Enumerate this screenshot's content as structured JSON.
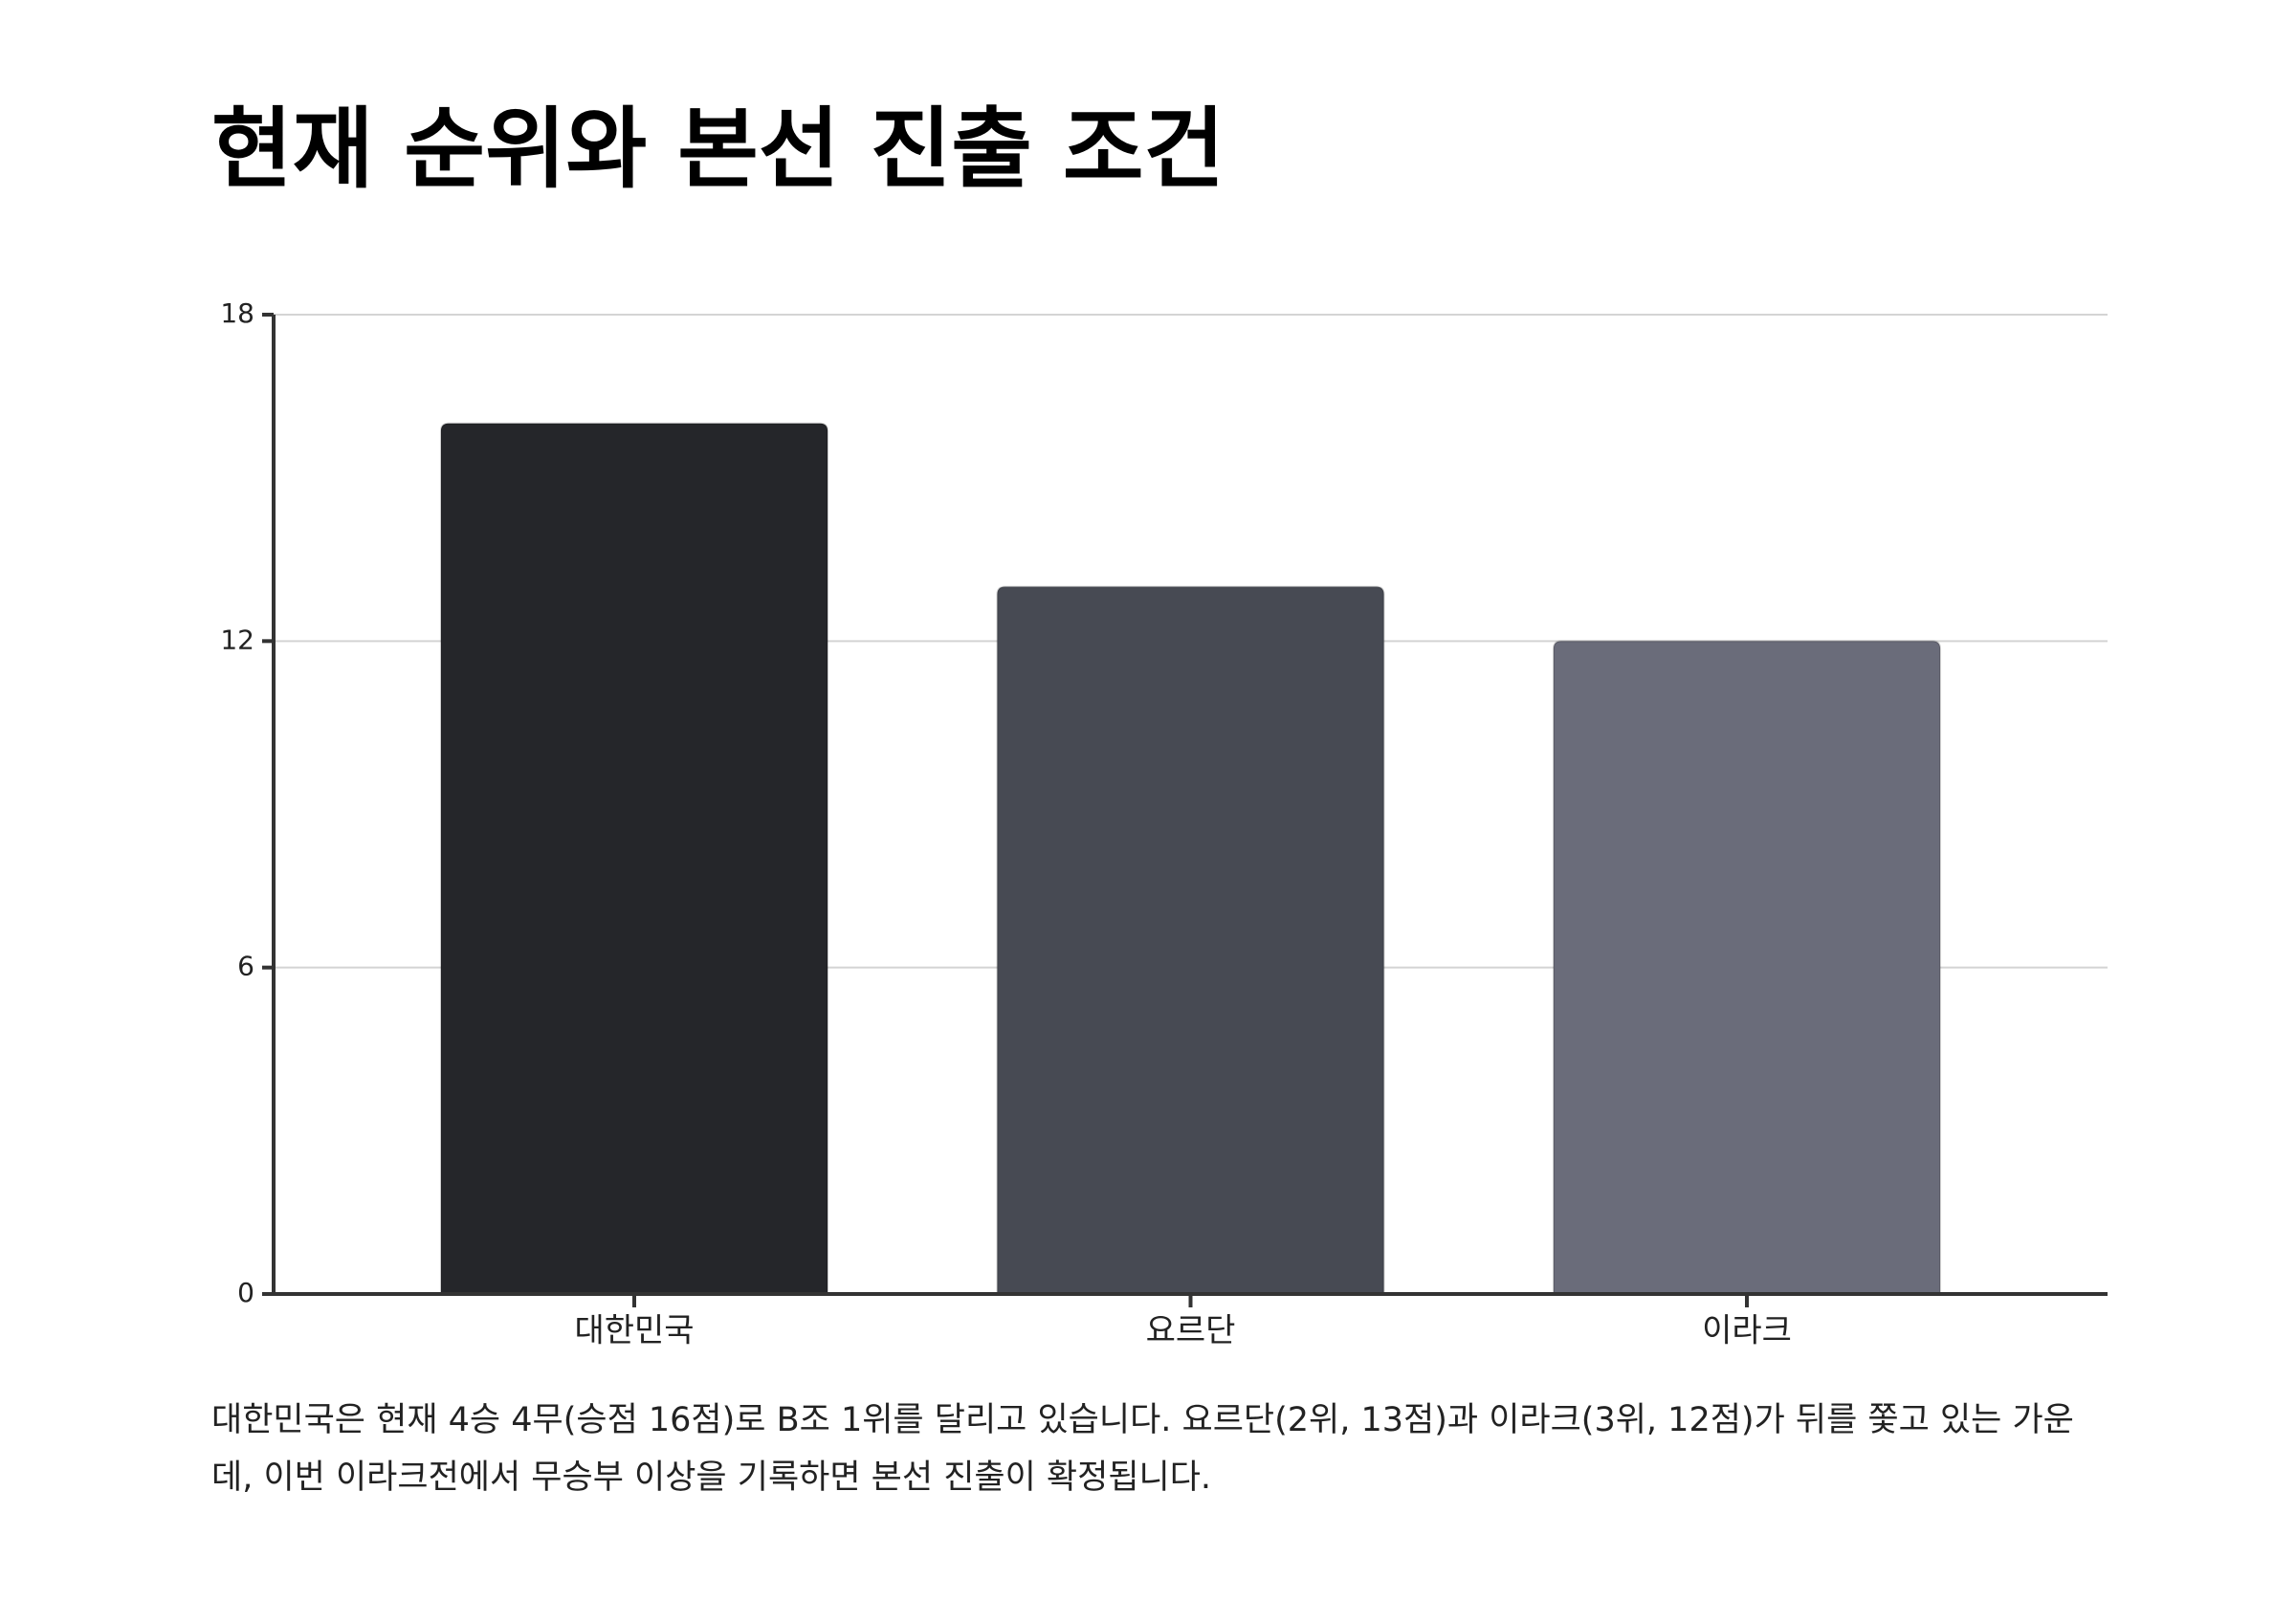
{
  "chart_data": {
    "type": "bar",
    "title": "현재 순위와 본선 진출 조건",
    "categories": [
      "대한민국",
      "요르단",
      "이라크"
    ],
    "values": [
      16,
      13,
      12
    ],
    "colors": [
      "#25262a",
      "#474a53",
      "#6a6c7a"
    ],
    "ylim": [
      0,
      18
    ],
    "yticks": [
      0,
      6,
      12,
      18
    ],
    "grid": true,
    "caption": "대한민국은 현재 4승 4무(승점 16점)로 B조 1위를 달리고 있습니다. 요르단(2위, 13점)과 이라크(3위, 12점)가 뒤를 쫓고 있는 가운데, 이번 이라크전에서 무승부 이상을 기록하면 본선 진출이 확정됩니다."
  }
}
